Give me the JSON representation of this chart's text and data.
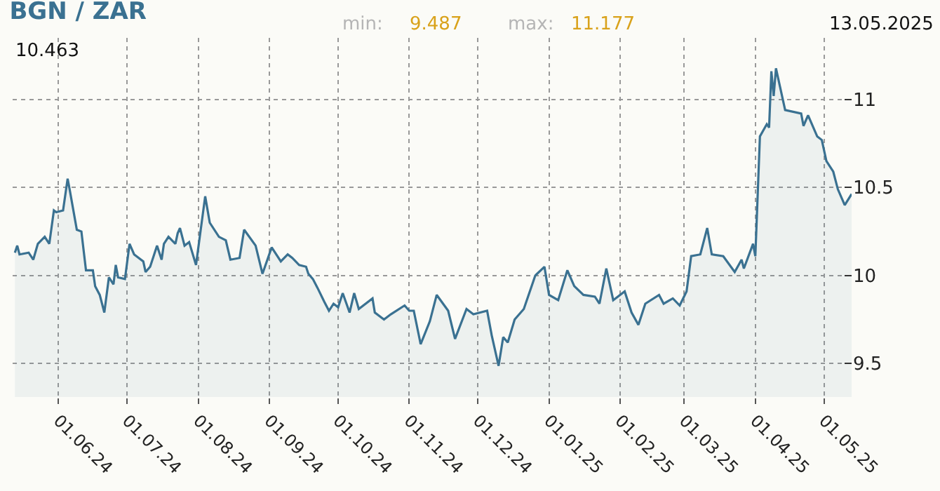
{
  "chart_data": {
    "type": "area",
    "title": "BGN / ZAR",
    "annotations": [
      "min:",
      "9.487",
      "max:",
      "11.177",
      "13.05.2025",
      "10.463"
    ],
    "x": [
      "2024-05-13",
      "2024-05-14",
      "2024-05-15",
      "2024-05-19",
      "2024-05-21",
      "2024-05-23",
      "2024-05-26",
      "2024-05-28",
      "2024-05-30",
      "2024-05-31",
      "2024-06-03",
      "2024-06-05",
      "2024-06-06",
      "2024-06-09",
      "2024-06-11",
      "2024-06-13",
      "2024-06-16",
      "2024-06-17",
      "2024-06-19",
      "2024-06-21",
      "2024-06-23",
      "2024-06-25",
      "2024-06-26",
      "2024-06-27",
      "2024-06-30",
      "2024-07-02",
      "2024-07-04",
      "2024-07-08",
      "2024-07-09",
      "2024-07-11",
      "2024-07-14",
      "2024-07-16",
      "2024-07-17",
      "2024-07-19",
      "2024-07-22",
      "2024-07-23",
      "2024-07-24",
      "2024-07-26",
      "2024-07-28",
      "2024-07-31",
      "2024-08-04",
      "2024-08-06",
      "2024-08-10",
      "2024-08-13",
      "2024-08-15",
      "2024-08-19",
      "2024-08-21",
      "2024-08-26",
      "2024-08-29",
      "2024-09-02",
      "2024-09-06",
      "2024-09-09",
      "2024-09-11",
      "2024-09-14",
      "2024-09-17",
      "2024-09-18",
      "2024-09-20",
      "2024-09-22",
      "2024-09-25",
      "2024-09-27",
      "2024-09-29",
      "2024-10-01",
      "2024-10-03",
      "2024-10-06",
      "2024-10-08",
      "2024-10-10",
      "2024-10-16",
      "2024-10-17",
      "2024-10-21",
      "2024-10-24",
      "2024-10-30",
      "2024-11-01",
      "2024-11-03",
      "2024-11-06",
      "2024-11-10",
      "2024-11-13",
      "2024-11-18",
      "2024-11-21",
      "2024-11-26",
      "2024-11-29",
      "2024-12-05",
      "2024-12-07",
      "2024-12-10",
      "2024-12-12",
      "2024-12-14",
      "2024-12-17",
      "2024-12-21",
      "2024-12-26",
      "2024-12-30",
      "2025-01-01",
      "2025-01-05",
      "2025-01-09",
      "2025-01-12",
      "2025-01-16",
      "2025-01-21",
      "2025-01-23",
      "2025-01-26",
      "2025-01-29",
      "2025-02-03",
      "2025-02-06",
      "2025-02-09",
      "2025-02-12",
      "2025-02-18",
      "2025-02-20",
      "2025-02-24",
      "2025-02-27",
      "2025-03-02",
      "2025-03-04",
      "2025-03-08",
      "2025-03-11",
      "2025-03-13",
      "2025-03-18",
      "2025-03-23",
      "2025-03-26",
      "2025-03-27",
      "2025-03-31",
      "2025-04-01",
      "2025-04-03",
      "2025-04-06",
      "2025-04-07",
      "2025-04-08",
      "2025-04-09",
      "2025-04-10",
      "2025-04-14",
      "2025-04-21",
      "2025-04-22",
      "2025-04-24",
      "2025-04-28",
      "2025-04-30",
      "2025-05-02",
      "2025-05-05",
      "2025-05-07",
      "2025-05-10",
      "2025-05-13"
    ],
    "series": [
      {
        "color": "#3a7191",
        "values": [
          10.13,
          10.17,
          10.12,
          10.13,
          10.09,
          10.18,
          10.22,
          10.18,
          10.37,
          10.36,
          10.37,
          10.55,
          10.48,
          10.26,
          10.25,
          10.03,
          10.03,
          9.94,
          9.89,
          9.79,
          9.99,
          9.95,
          10.06,
          9.99,
          9.98,
          10.18,
          10.12,
          10.08,
          10.02,
          10.05,
          10.17,
          10.09,
          10.18,
          10.22,
          10.18,
          10.24,
          10.27,
          10.17,
          10.19,
          10.06,
          10.45,
          10.3,
          10.22,
          10.2,
          10.09,
          10.1,
          10.26,
          10.17,
          10.01,
          10.16,
          10.08,
          10.12,
          10.1,
          10.06,
          10.05,
          10.01,
          9.98,
          9.93,
          9.85,
          9.8,
          9.84,
          9.82,
          9.9,
          9.79,
          9.9,
          9.81,
          9.87,
          9.79,
          9.75,
          9.78,
          9.83,
          9.8,
          9.8,
          9.61,
          9.74,
          9.89,
          9.8,
          9.64,
          9.81,
          9.78,
          9.8,
          9.66,
          9.487,
          9.65,
          9.62,
          9.75,
          9.81,
          10.0,
          10.05,
          9.89,
          9.86,
          10.03,
          9.94,
          9.89,
          9.88,
          9.84,
          10.04,
          9.86,
          9.91,
          9.79,
          9.72,
          9.84,
          9.89,
          9.84,
          9.87,
          9.83,
          9.91,
          10.11,
          10.12,
          10.27,
          10.12,
          10.11,
          10.02,
          10.09,
          10.04,
          10.18,
          10.11,
          10.79,
          10.86,
          10.84,
          11.16,
          11.02,
          11.177,
          10.94,
          10.92,
          10.85,
          10.91,
          10.79,
          10.77,
          10.65,
          10.59,
          10.49,
          10.4,
          10.463
        ]
      }
    ],
    "xlim": [
      "2024-05-12",
      "2025-05-13"
    ],
    "xticks": [
      {
        "value": "2024-06-01",
        "label": "01.06.24"
      },
      {
        "value": "2024-07-01",
        "label": "01.07.24"
      },
      {
        "value": "2024-08-01",
        "label": "01.08.24"
      },
      {
        "value": "2024-09-01",
        "label": "01.09.24"
      },
      {
        "value": "2024-10-01",
        "label": "01.10.24"
      },
      {
        "value": "2024-11-01",
        "label": "01.11.24"
      },
      {
        "value": "2024-12-01",
        "label": "01.12.24"
      },
      {
        "value": "2025-01-01",
        "label": "01.01.25"
      },
      {
        "value": "2025-02-01",
        "label": "01.02.25"
      },
      {
        "value": "2025-03-01",
        "label": "01.03.25"
      },
      {
        "value": "2025-04-01",
        "label": "01.04.25"
      },
      {
        "value": "2025-05-01",
        "label": "01.05.25"
      }
    ],
    "ylim": [
      9.31,
      11.35
    ],
    "yticks": [
      9.5,
      10,
      10.5,
      11
    ],
    "grid": true,
    "legend": false,
    "marker": "none",
    "line_style": "solid"
  }
}
